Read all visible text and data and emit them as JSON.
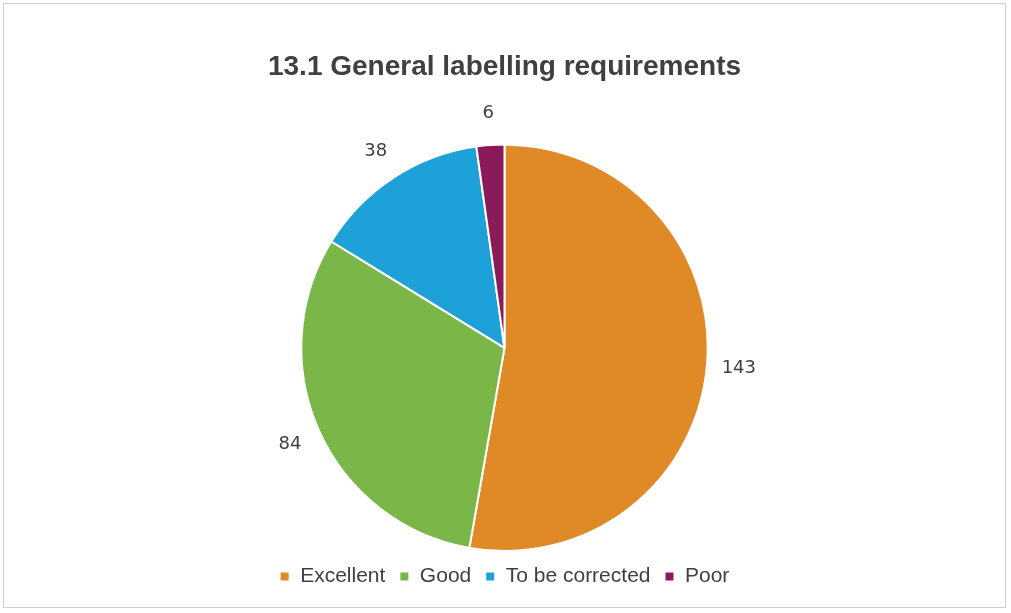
{
  "chart_data": {
    "type": "pie",
    "title": "13.1 General labelling requirements",
    "categories": [
      "Excellent",
      "Good",
      "To be corrected",
      "Poor"
    ],
    "values": [
      143,
      84,
      38,
      6
    ],
    "colors": [
      "#e08a27",
      "#7ab648",
      "#1ea0d8",
      "#8b1a5a"
    ],
    "data_labels": true,
    "legend": "bottom"
  }
}
